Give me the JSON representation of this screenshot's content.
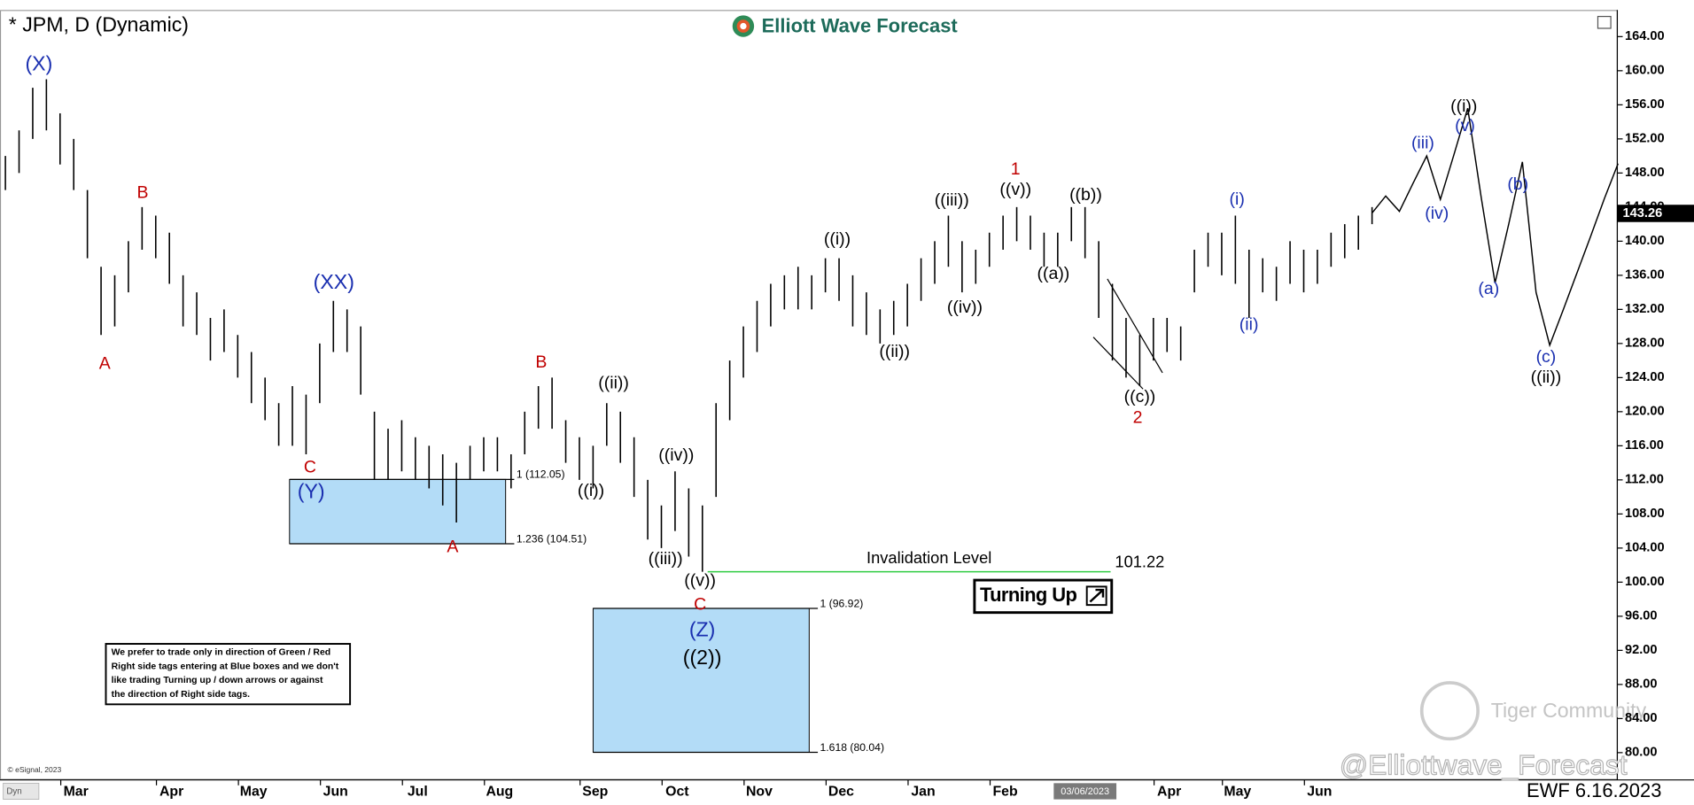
{
  "header": {
    "title": "* JPM, D (Dynamic)",
    "brand": "Elliott Wave Forecast",
    "copyright": "© eSignal, 2023",
    "dyn": "Dyn",
    "watermark_handle": "@Elliottwave_Forecast",
    "watermark_community": "Tiger Community",
    "stamp": "EWF 6.16.2023"
  },
  "notes": {
    "disclaimer": [
      "We prefer to trade only in direction of Green / Red",
      "Right side tags entering at Blue boxes and we don't",
      "like trading Turning up / down arrows or against",
      "the direction of Right side tags."
    ],
    "turning": "Turning Up"
  },
  "chart_data": {
    "type": "ohlc",
    "categories": [
      null,
      null,
      null,
      null,
      null,
      "Mar",
      null,
      null,
      null,
      null,
      null,
      null,
      "Apr",
      null,
      null,
      null,
      null,
      null,
      "May",
      null,
      null,
      null,
      null,
      null,
      "Jun",
      null,
      null,
      null,
      null,
      null,
      "Jul",
      null,
      null,
      null,
      null,
      null,
      "Aug",
      null,
      null,
      null,
      null,
      null,
      null,
      "Sep",
      null,
      null,
      null,
      null,
      null,
      "Oct",
      null,
      null,
      null,
      null,
      null,
      "Nov",
      null,
      null,
      null,
      null,
      null,
      "Dec",
      null,
      null,
      null,
      null,
      null,
      "Jan",
      null,
      null,
      null,
      null,
      null,
      "Feb",
      null,
      null,
      null,
      null,
      null,
      "03/06/2023",
      null,
      null,
      null,
      null,
      null,
      "Apr",
      null,
      null,
      null,
      null,
      "May",
      null,
      null,
      null,
      null,
      null,
      "Jun",
      null,
      null,
      null,
      null,
      null,
      null,
      null,
      null,
      null,
      null,
      null,
      null,
      null,
      null,
      null,
      null,
      null,
      null,
      null,
      null,
      null,
      null
    ],
    "series": [
      {
        "color": "#000000",
        "high": [
          150,
          153,
          158,
          159,
          155,
          152,
          146,
          137,
          136,
          140,
          144,
          143,
          141,
          136,
          134,
          131,
          132,
          129,
          127,
          124,
          121,
          123,
          122,
          128,
          133,
          132,
          130,
          120,
          118,
          119,
          117,
          116,
          115,
          114,
          116,
          117,
          117,
          115,
          120,
          123,
          124,
          119,
          117,
          116,
          121,
          120,
          117,
          112,
          109,
          113,
          111,
          109,
          121,
          126,
          130,
          133,
          135,
          136,
          137,
          136,
          138,
          138,
          136,
          134,
          132,
          133,
          135,
          138,
          140,
          143,
          140,
          139,
          141,
          143,
          144,
          143,
          141,
          141,
          144,
          144,
          140,
          135,
          131,
          129,
          131,
          131,
          130,
          139,
          141,
          141,
          143,
          139,
          138,
          137,
          140,
          139,
          139,
          141,
          142,
          143,
          144,
          null,
          null,
          null,
          null,
          null,
          null,
          null,
          null,
          null,
          null,
          null,
          null,
          null,
          null,
          null,
          null,
          null,
          null
        ],
        "low": [
          146,
          148,
          152,
          153,
          149,
          146,
          138,
          129,
          130,
          134,
          139,
          138,
          135,
          130,
          129,
          126,
          127,
          124,
          121,
          119,
          116,
          116,
          115,
          121,
          127,
          127,
          122,
          112,
          112,
          113,
          112,
          111,
          109,
          107,
          112,
          113,
          113,
          111,
          115,
          118,
          118,
          114,
          112,
          111,
          116,
          114,
          110,
          105,
          104,
          106,
          103,
          101.22,
          110,
          119,
          124,
          127,
          130,
          132,
          132,
          132,
          134,
          133,
          130,
          129,
          128,
          129,
          130,
          133,
          135,
          137,
          134,
          135,
          137,
          139,
          140,
          139,
          137,
          137,
          140,
          138,
          131,
          126,
          124,
          123,
          126,
          127,
          126,
          134,
          137,
          136,
          135,
          131,
          134,
          133,
          135,
          134,
          135,
          137,
          138,
          139,
          142,
          null,
          null,
          null,
          null,
          null,
          null,
          null,
          null,
          null,
          null,
          null,
          null,
          null,
          null,
          null,
          null,
          null,
          null
        ]
      },
      {
        "color": "#000000",
        "values": [
          null,
          null,
          null,
          null,
          null,
          null,
          null,
          null,
          null,
          null,
          null,
          null,
          null,
          null,
          null,
          null,
          null,
          null,
          null,
          null,
          null,
          null,
          null,
          null,
          null,
          null,
          null,
          null,
          null,
          null,
          null,
          null,
          null,
          null,
          null,
          null,
          null,
          null,
          null,
          null,
          null,
          null,
          null,
          null,
          null,
          null,
          null,
          null,
          null,
          null,
          null,
          null,
          null,
          null,
          null,
          null,
          null,
          null,
          null,
          null,
          null,
          null,
          null,
          null,
          null,
          null,
          null,
          null,
          null,
          null,
          null,
          null,
          null,
          null,
          null,
          null,
          null,
          null,
          null,
          null,
          null,
          null,
          null,
          null,
          null,
          null,
          null,
          null,
          null,
          null,
          null,
          null,
          null,
          null,
          null,
          null,
          null,
          null,
          null,
          null,
          143.3,
          145.3,
          143.5,
          146.8,
          150,
          144.9,
          150.2,
          155.6,
          145,
          135.1,
          142,
          149.3,
          134,
          127.8,
          132,
          136.3,
          140.6,
          145,
          149.1
        ]
      }
    ],
    "ylim": [
      76.8,
      167
    ],
    "yticks": [
      {
        "value": 164,
        "label": "164.00"
      },
      {
        "value": 160,
        "label": "160.00"
      },
      {
        "value": 156,
        "label": "156.00"
      },
      {
        "value": 152,
        "label": "152.00"
      },
      {
        "value": 148,
        "label": "148.00"
      },
      {
        "value": 144,
        "label": "144.00"
      },
      {
        "value": 140,
        "label": "140.00"
      },
      {
        "value": 136,
        "label": "136.00"
      },
      {
        "value": 132,
        "label": "132.00"
      },
      {
        "value": 128,
        "label": "128.00"
      },
      {
        "value": 124,
        "label": "124.00"
      },
      {
        "value": 120,
        "label": "120.00"
      },
      {
        "value": 116,
        "label": "116.00"
      },
      {
        "value": 112,
        "label": "112.00"
      },
      {
        "value": 108,
        "label": "108.00"
      },
      {
        "value": 104,
        "label": "104.00"
      },
      {
        "value": 100,
        "label": "100.00"
      },
      {
        "value": 96,
        "label": "96.00"
      },
      {
        "value": 92,
        "label": "92.00"
      },
      {
        "value": 88,
        "label": "88.00"
      },
      {
        "value": 84,
        "label": "84.00"
      },
      {
        "value": 80,
        "label": "80.00"
      }
    ],
    "last_price": 143.26,
    "levels": [
      {
        "value": 112.05,
        "label": "1 (112.05)"
      },
      {
        "value": 104.51,
        "label": "1.236 (104.51)"
      },
      {
        "value": 96.92,
        "label": "1 (96.92)"
      },
      {
        "value": 80.04,
        "label": "1.618 (80.04)"
      }
    ],
    "invalidation": {
      "label": "Invalidation Level",
      "value": 101.22,
      "color": "#2ecc40"
    },
    "box_color": "#b3dcf7",
    "annotations": [
      {
        "text": "(X)",
        "color": "#1a2fb0"
      },
      {
        "text": "A",
        "color": "#c00000"
      },
      {
        "text": "B",
        "color": "#c00000"
      },
      {
        "text": "(XX)",
        "color": "#1a2fb0"
      },
      {
        "text": "C",
        "color": "#c00000"
      },
      {
        "text": "(Y)",
        "color": "#1a2fb0"
      },
      {
        "text": "A",
        "color": "#c00000"
      },
      {
        "text": "B",
        "color": "#c00000"
      },
      {
        "text": "((ii))",
        "color": "#000000"
      },
      {
        "text": "((i))",
        "color": "#000000"
      },
      {
        "text": "((iv))",
        "color": "#000000"
      },
      {
        "text": "((iii))",
        "color": "#000000"
      },
      {
        "text": "((v))",
        "color": "#000000"
      },
      {
        "text": "C",
        "color": "#c00000"
      },
      {
        "text": "(Z)",
        "color": "#1a2fb0"
      },
      {
        "text": "((2))",
        "color": "#000000"
      },
      {
        "text": "((i))",
        "color": "#000000"
      },
      {
        "text": "((ii))",
        "color": "#000000"
      },
      {
        "text": "((iii))",
        "color": "#000000"
      },
      {
        "text": "((iv))",
        "color": "#000000"
      },
      {
        "text": "1",
        "color": "#c00000"
      },
      {
        "text": "((v))",
        "color": "#000000"
      },
      {
        "text": "((a))",
        "color": "#000000"
      },
      {
        "text": "((b))",
        "color": "#000000"
      },
      {
        "text": "((c))",
        "color": "#000000"
      },
      {
        "text": "2",
        "color": "#c00000"
      },
      {
        "text": "(i)",
        "color": "#1a2fb0"
      },
      {
        "text": "(ii)",
        "color": "#1a2fb0"
      },
      {
        "text": "(iii)",
        "color": "#1a2fb0"
      },
      {
        "text": "(iv)",
        "color": "#1a2fb0"
      },
      {
        "text": "(v)",
        "color": "#1a2fb0"
      },
      {
        "text": "((i))",
        "color": "#000000"
      },
      {
        "text": "(a)",
        "color": "#1a2fb0"
      },
      {
        "text": "(b)",
        "color": "#1a2fb0"
      },
      {
        "text": "(c)",
        "color": "#1a2fb0"
      },
      {
        "text": "((ii))",
        "color": "#000000"
      }
    ]
  }
}
